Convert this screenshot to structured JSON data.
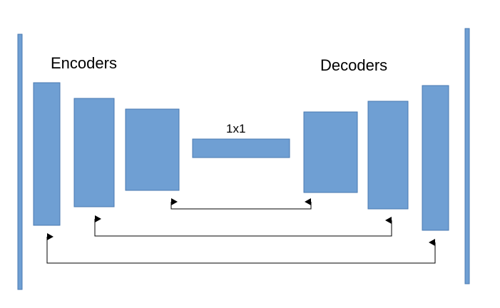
{
  "diagram": {
    "labels": {
      "encoders": "Encoders",
      "decoders": "Decoders",
      "bottleneck": "1x1"
    },
    "colors": {
      "block_fill": "#6f9fd3",
      "block_stroke": "#4a79b0",
      "arrow": "#000000"
    }
  }
}
